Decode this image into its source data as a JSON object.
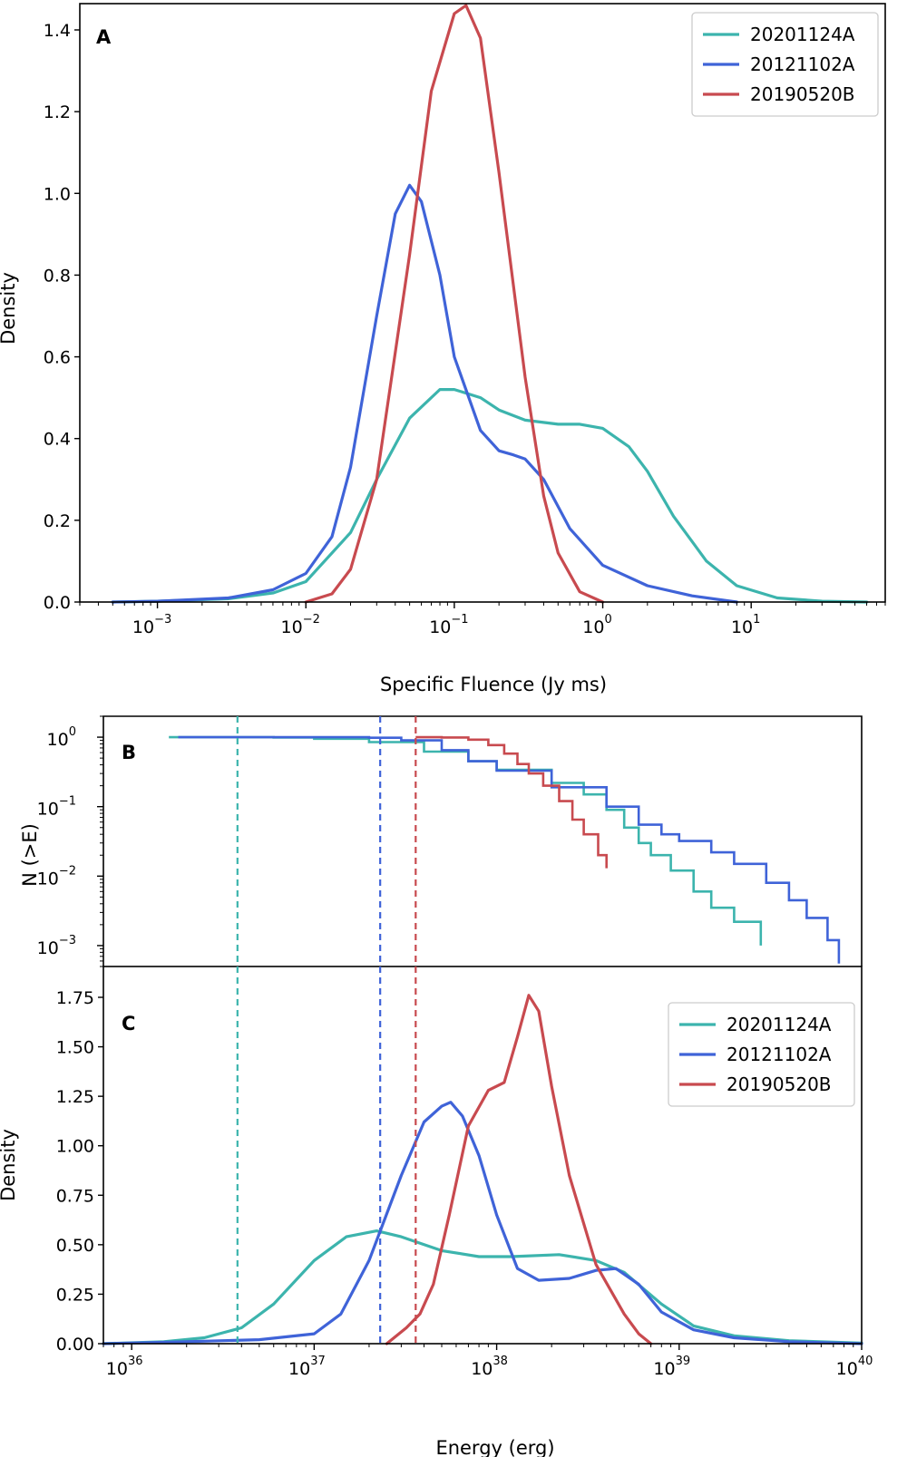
{
  "colors": {
    "20201124A": "#3cb4ad",
    "20121102A": "#3f63d8",
    "20190520B": "#c84a4f"
  },
  "chart_data": [
    {
      "panel": "A",
      "type": "line",
      "xlabel": "Specific Fluence (Jy ms)",
      "ylabel": "Density",
      "xscale": "log",
      "xlim": [
        0.0003,
        80
      ],
      "ylim": [
        0,
        1.4
      ],
      "xticks": [
        {
          "base": "10",
          "exp": "−3",
          "value": 0.001
        },
        {
          "base": "10",
          "exp": "−2",
          "value": 0.01
        },
        {
          "base": "10",
          "exp": "−1",
          "value": 0.1
        },
        {
          "base": "10",
          "exp": "0",
          "value": 1
        },
        {
          "base": "10",
          "exp": "1",
          "value": 10
        }
      ],
      "yticks": [
        "0.0",
        "0.2",
        "0.4",
        "0.6",
        "0.8",
        "1.0",
        "1.2",
        "1.4"
      ],
      "legend": {
        "position": "upper right",
        "entries": [
          "20201124A",
          "20121102A",
          "20190520B"
        ]
      },
      "series": [
        {
          "name": "20201124A",
          "x": [
            0.0005,
            0.001,
            0.003,
            0.006,
            0.01,
            0.02,
            0.03,
            0.05,
            0.08,
            0.1,
            0.15,
            0.2,
            0.3,
            0.5,
            0.7,
            1.0,
            1.5,
            2.0,
            3.0,
            5.0,
            8.0,
            15.0,
            30.0,
            60.0
          ],
          "y": [
            0,
            0.002,
            0.008,
            0.022,
            0.05,
            0.17,
            0.3,
            0.45,
            0.52,
            0.52,
            0.5,
            0.47,
            0.445,
            0.435,
            0.435,
            0.425,
            0.38,
            0.32,
            0.21,
            0.1,
            0.04,
            0.01,
            0.002,
            0
          ]
        },
        {
          "name": "20121102A",
          "x": [
            0.0005,
            0.001,
            0.003,
            0.006,
            0.01,
            0.015,
            0.02,
            0.03,
            0.04,
            0.05,
            0.06,
            0.08,
            0.1,
            0.15,
            0.2,
            0.25,
            0.3,
            0.4,
            0.6,
            1.0,
            2.0,
            4.0,
            8.0
          ],
          "y": [
            0,
            0.002,
            0.01,
            0.03,
            0.07,
            0.16,
            0.33,
            0.7,
            0.95,
            1.02,
            0.98,
            0.8,
            0.6,
            0.42,
            0.37,
            0.36,
            0.35,
            0.3,
            0.18,
            0.09,
            0.04,
            0.015,
            0
          ]
        },
        {
          "name": "20190520B",
          "x": [
            0.01,
            0.015,
            0.02,
            0.03,
            0.05,
            0.07,
            0.1,
            0.12,
            0.15,
            0.2,
            0.3,
            0.4,
            0.5,
            0.7,
            1.0
          ],
          "y": [
            0,
            0.02,
            0.08,
            0.3,
            0.85,
            1.25,
            1.44,
            1.46,
            1.38,
            1.05,
            0.55,
            0.26,
            0.12,
            0.025,
            0
          ]
        }
      ]
    },
    {
      "panel": "B",
      "type": "line",
      "ylabel": "N (>E)",
      "xscale": "log",
      "yscale": "log",
      "xlim": [
        7e+35,
        1e+40
      ],
      "ylim": [
        0.0005,
        2
      ],
      "yticks": [
        {
          "base": "10",
          "exp": "0",
          "value": 1
        },
        {
          "base": "10",
          "exp": "−1",
          "value": 0.1
        },
        {
          "base": "10",
          "exp": "−2",
          "value": 0.01
        },
        {
          "base": "10",
          "exp": "−3",
          "value": 0.001
        }
      ],
      "thresholds": [
        {
          "name": "20201124A",
          "x": 3.8e+36
        },
        {
          "name": "20121102A",
          "x": 2.3e+37
        },
        {
          "name": "20190520B",
          "x": 3.6e+37
        }
      ],
      "series": [
        {
          "name": "20201124A",
          "x": [
            1.6e+36,
            3e+36,
            6e+36,
            1e+37,
            2e+37,
            4e+37,
            7e+37,
            1e+38,
            2e+38,
            3e+38,
            4e+38,
            5e+38,
            6e+38,
            7e+38,
            9e+38,
            1.2e+39,
            1.5e+39,
            2e+39,
            2.8e+39
          ],
          "y": [
            1,
            1,
            0.99,
            0.95,
            0.85,
            0.62,
            0.45,
            0.34,
            0.22,
            0.15,
            0.09,
            0.05,
            0.03,
            0.02,
            0.012,
            0.006,
            0.0035,
            0.0022,
            0.001
          ]
        },
        {
          "name": "20121102A",
          "x": [
            1.8e+36,
            5e+36,
            1e+37,
            2e+37,
            3e+37,
            5e+37,
            7e+37,
            1e+38,
            2e+38,
            4e+38,
            6e+38,
            8e+38,
            1e+39,
            1.5e+39,
            2e+39,
            3e+39,
            4e+39,
            5e+39,
            6.5e+39,
            7.5e+39
          ],
          "y": [
            1,
            1,
            1,
            0.98,
            0.9,
            0.65,
            0.45,
            0.33,
            0.19,
            0.1,
            0.055,
            0.04,
            0.032,
            0.022,
            0.015,
            0.008,
            0.0045,
            0.0025,
            0.0012,
            0.00055
          ]
        },
        {
          "name": "20190520B",
          "x": [
            3.6e+37,
            5e+37,
            7e+37,
            9e+37,
            1.1e+38,
            1.3e+38,
            1.5e+38,
            1.8e+38,
            2.2e+38,
            2.6e+38,
            3e+38,
            3.6e+38,
            4e+38
          ],
          "y": [
            1,
            0.99,
            0.92,
            0.77,
            0.58,
            0.41,
            0.3,
            0.2,
            0.12,
            0.065,
            0.04,
            0.02,
            0.013
          ]
        }
      ]
    },
    {
      "panel": "C",
      "type": "line",
      "xlabel": "Energy (erg)",
      "ylabel": "Density",
      "xscale": "log",
      "xlim": [
        7e+35,
        1e+40
      ],
      "ylim": [
        0,
        1.75
      ],
      "xticks": [
        {
          "base": "10",
          "exp": "36",
          "value": 1e+36
        },
        {
          "base": "10",
          "exp": "37",
          "value": 1e+37
        },
        {
          "base": "10",
          "exp": "38",
          "value": 1e+38
        },
        {
          "base": "10",
          "exp": "39",
          "value": 1e+39
        },
        {
          "base": "10",
          "exp": "40",
          "value": 1e+40
        }
      ],
      "yticks": [
        "0.00",
        "0.25",
        "0.50",
        "0.75",
        "1.00",
        "1.25",
        "1.50",
        "1.75"
      ],
      "legend": {
        "position": "upper right",
        "entries": [
          "20201124A",
          "20121102A",
          "20190520B"
        ]
      },
      "series": [
        {
          "name": "20201124A",
          "x": [
            7e+35,
            1.5e+36,
            2.5e+36,
            4e+36,
            6e+36,
            1e+37,
            1.5e+37,
            2.2e+37,
            3e+37,
            5e+37,
            8e+37,
            1.2e+38,
            2.2e+38,
            3.5e+38,
            5e+38,
            8e+38,
            1.2e+39,
            2e+39,
            4e+39,
            1e+40
          ],
          "y": [
            0,
            0.01,
            0.03,
            0.08,
            0.2,
            0.42,
            0.54,
            0.57,
            0.54,
            0.47,
            0.44,
            0.44,
            0.45,
            0.42,
            0.36,
            0.2,
            0.09,
            0.04,
            0.015,
            0.003
          ]
        },
        {
          "name": "20121102A",
          "x": [
            7e+35,
            2e+36,
            5e+36,
            1e+37,
            1.4e+37,
            2e+37,
            3e+37,
            4e+37,
            5e+37,
            5.6e+37,
            6.5e+37,
            8e+37,
            1e+38,
            1.3e+38,
            1.7e+38,
            2.5e+38,
            3.5e+38,
            4.5e+38,
            6e+38,
            8e+38,
            1.2e+39,
            2e+39,
            4e+39,
            1e+40
          ],
          "y": [
            0,
            0.01,
            0.02,
            0.05,
            0.15,
            0.42,
            0.85,
            1.12,
            1.2,
            1.22,
            1.15,
            0.95,
            0.65,
            0.38,
            0.32,
            0.33,
            0.37,
            0.38,
            0.3,
            0.16,
            0.07,
            0.03,
            0.01,
            0
          ]
        },
        {
          "name": "20190520B",
          "x": [
            2.5e+37,
            3.2e+37,
            3.8e+37,
            4.5e+37,
            5.5e+37,
            7e+37,
            9e+37,
            1.1e+38,
            1.3e+38,
            1.5e+38,
            1.7e+38,
            2e+38,
            2.5e+38,
            3.5e+38,
            5e+38,
            6e+38,
            7e+38
          ],
          "y": [
            0,
            0.08,
            0.15,
            0.3,
            0.65,
            1.1,
            1.28,
            1.32,
            1.55,
            1.76,
            1.68,
            1.3,
            0.85,
            0.4,
            0.15,
            0.05,
            0
          ]
        }
      ]
    }
  ]
}
